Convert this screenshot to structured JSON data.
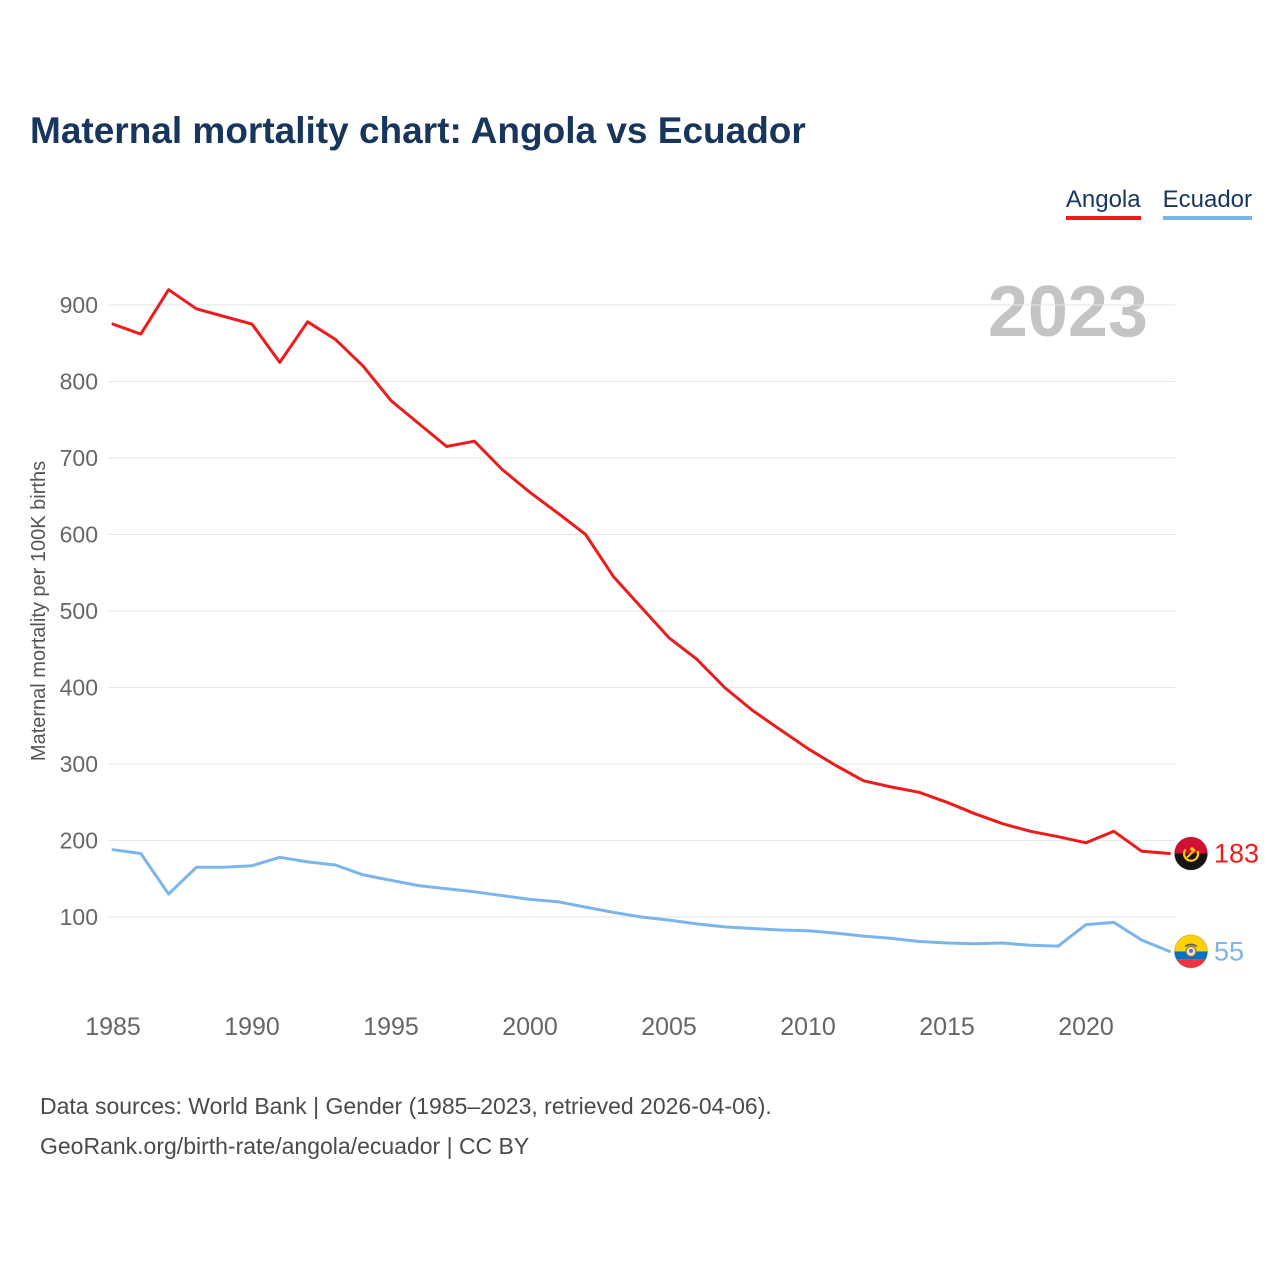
{
  "page": {
    "title": "Maternal mortality chart: Angola vs Ecuador",
    "footer_line1": "Data sources: World Bank | Gender (1985–2023, retrieved 2026-04-06).",
    "footer_line2": "GeoRank.org/birth-rate/angola/ecuador | CC BY"
  },
  "legend": [
    {
      "label": "Angola",
      "color": "#ed1c1c"
    },
    {
      "label": "Ecuador",
      "color": "#7cb5ec"
    }
  ],
  "chart_data": {
    "type": "line",
    "title": "Maternal mortality chart: Angola vs Ecuador",
    "xlabel": "",
    "ylabel": "Maternal mortality per 100K births",
    "watermark": "2023",
    "grid": true,
    "legend_position": "top-right",
    "xlim": [
      1985,
      2023
    ],
    "ylim": [
      40,
      950
    ],
    "yticks": [
      100,
      200,
      300,
      400,
      500,
      600,
      700,
      800,
      900
    ],
    "xticks": [
      1985,
      1990,
      1995,
      2000,
      2005,
      2010,
      2015,
      2020
    ],
    "x": [
      1985,
      1986,
      1987,
      1988,
      1989,
      1990,
      1991,
      1992,
      1993,
      1994,
      1995,
      1996,
      1997,
      1998,
      1999,
      2000,
      2001,
      2002,
      2003,
      2004,
      2005,
      2006,
      2007,
      2008,
      2009,
      2010,
      2011,
      2012,
      2013,
      2014,
      2015,
      2016,
      2017,
      2018,
      2019,
      2020,
      2021,
      2022,
      2023
    ],
    "series": [
      {
        "name": "Angola",
        "color": "#ed1c1c",
        "end_label": "183",
        "values": [
          875,
          862,
          920,
          895,
          885,
          875,
          825,
          878,
          855,
          820,
          775,
          745,
          715,
          722,
          685,
          655,
          628,
          600,
          545,
          505,
          465,
          437,
          400,
          370,
          345,
          320,
          298,
          278,
          270,
          263,
          250,
          235,
          222,
          212,
          205,
          197,
          212,
          186,
          183
        ]
      },
      {
        "name": "Ecuador",
        "color": "#7cb5ec",
        "end_label": "55",
        "values": [
          188,
          183,
          130,
          165,
          165,
          167,
          178,
          172,
          168,
          155,
          148,
          141,
          137,
          133,
          128,
          123,
          120,
          113,
          106,
          100,
          96,
          91,
          87,
          85,
          83,
          82,
          79,
          75,
          72,
          68,
          66,
          65,
          66,
          63,
          62,
          90,
          93,
          70,
          55
        ]
      }
    ]
  }
}
